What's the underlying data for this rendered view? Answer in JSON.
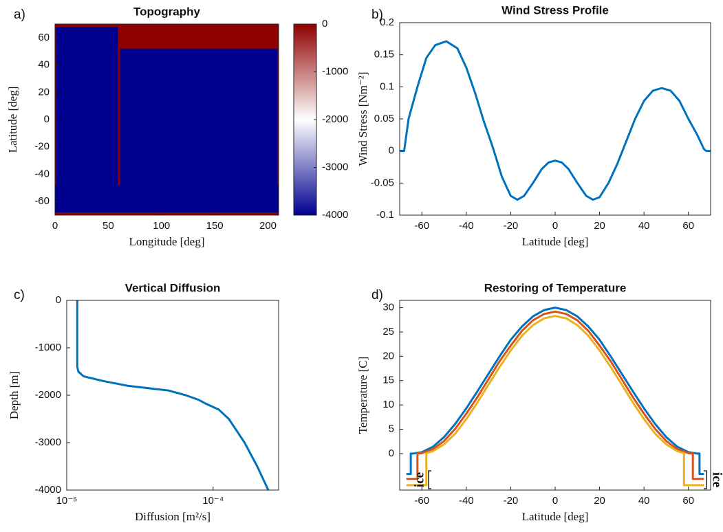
{
  "chart_data": [
    {
      "type": "heatmap",
      "panel_label": "a)",
      "title": "Topography",
      "xlabel": "Longitude [deg]",
      "ylabel": "Latitude [deg]",
      "xlim": [
        0,
        210
      ],
      "ylim": [
        -70,
        70
      ],
      "xticks": [
        0,
        50,
        100,
        150,
        200
      ],
      "yticks": [
        -60,
        -40,
        -20,
        0,
        20,
        40,
        60
      ],
      "clim": [
        -4000,
        0
      ],
      "cticks": [
        0,
        -1000,
        -2000,
        -3000,
        -4000
      ],
      "colormap": [
        "#00008f",
        "#ffffff",
        "#8f0000"
      ],
      "cells": [
        {
          "x": [
            0,
            210
          ],
          "y": [
            -70,
            70
          ],
          "value": 0
        },
        {
          "x": [
            1,
            59
          ],
          "y": [
            -68,
            68
          ],
          "value": -4000
        },
        {
          "x": [
            61,
            209
          ],
          "y": [
            -68,
            52
          ],
          "value": -4000
        },
        {
          "x": [
            0,
            210
          ],
          "y": [
            -68,
            -48
          ],
          "value": -4000
        }
      ]
    },
    {
      "type": "line",
      "panel_label": "b)",
      "title": "Wind Stress Profile",
      "xlabel": "Latitude [deg]",
      "ylabel": "Wind Stress [Nm⁻²]",
      "xlim": [
        -70,
        70
      ],
      "ylim": [
        -0.1,
        0.2
      ],
      "xticks": [
        -60,
        -40,
        -20,
        0,
        20,
        40,
        60
      ],
      "yticks": [
        -0.1,
        -0.05,
        0,
        0.05,
        0.1,
        0.15,
        0.2
      ],
      "series": [
        {
          "color": "#0072bd",
          "x": [
            -70,
            -68,
            -66,
            -62,
            -58,
            -54,
            -49,
            -44,
            -40,
            -36,
            -32,
            -28,
            -24,
            -20,
            -17,
            -14,
            -10,
            -6,
            -3,
            0,
            3,
            6,
            10,
            14,
            17,
            20,
            24,
            28,
            32,
            36,
            40,
            44,
            48,
            52,
            56,
            60,
            64,
            67,
            68,
            70
          ],
          "values": [
            0,
            0,
            0.05,
            0.1,
            0.145,
            0.165,
            0.171,
            0.16,
            0.13,
            0.09,
            0.045,
            0.005,
            -0.04,
            -0.07,
            -0.076,
            -0.07,
            -0.05,
            -0.028,
            -0.018,
            -0.015,
            -0.018,
            -0.028,
            -0.05,
            -0.07,
            -0.076,
            -0.072,
            -0.05,
            -0.02,
            0.015,
            0.05,
            0.078,
            0.094,
            0.098,
            0.094,
            0.078,
            0.05,
            0.025,
            0.003,
            0,
            0
          ]
        }
      ]
    },
    {
      "type": "line",
      "panel_label": "c)",
      "title": "Vertical Diffusion",
      "xlabel": "Diffusion [m²/s]",
      "ylabel": "Depth [m]",
      "xscale": "log",
      "xlim": [
        1e-05,
        0.00028
      ],
      "ylim": [
        -4000,
        0
      ],
      "xticks": [
        {
          "value": 1e-05,
          "label": "10⁻⁵"
        },
        {
          "value": 0.0001,
          "label": "10⁻⁴"
        }
      ],
      "yticks": [
        -4000,
        -3000,
        -2000,
        -1000,
        0
      ],
      "series": [
        {
          "color": "#0072bd",
          "x": [
            1.18e-05,
            1.18e-05,
            1.2e-05,
            1.3e-05,
            1.77e-05,
            2.6e-05,
            4.95e-05,
            6.5e-05,
            8e-05,
            8.8e-05,
            0.000109,
            0.000128,
            0.000164,
            0.0002,
            0.000238
          ],
          "values": [
            0,
            -1400,
            -1500,
            -1600,
            -1700,
            -1800,
            -1900,
            -2000,
            -2100,
            -2170,
            -2300,
            -2500,
            -3000,
            -3500,
            -4000
          ]
        }
      ]
    },
    {
      "type": "line",
      "panel_label": "d)",
      "title": "Restoring of Temperature",
      "xlabel": "Latitude [deg]",
      "ylabel": "Temperature [C]",
      "xlim": [
        -70,
        70
      ],
      "ylim": [
        -7.5,
        31.5
      ],
      "xticks": [
        -60,
        -40,
        -20,
        0,
        20,
        40,
        60
      ],
      "yticks": [
        0,
        5,
        10,
        15,
        20,
        25,
        30
      ],
      "ice_labels": [
        "ice",
        "ice"
      ],
      "series": [
        {
          "color": "#0072bd",
          "x": [
            -67,
            -65,
            -65,
            -64,
            -60,
            -55,
            -50,
            -45,
            -40,
            -35,
            -30,
            -25,
            -20,
            -15,
            -10,
            -5,
            0,
            5,
            10,
            15,
            20,
            25,
            30,
            35,
            40,
            45,
            50,
            55,
            60,
            64,
            65,
            65,
            67
          ],
          "values": [
            -4.2,
            -4.2,
            0,
            0,
            0.3,
            1.4,
            3.4,
            6.1,
            9.3,
            12.8,
            16.4,
            20.0,
            23.4,
            26.1,
            28.2,
            29.5,
            30,
            29.5,
            28.2,
            26.1,
            23.4,
            20.0,
            16.4,
            12.8,
            9.3,
            6.1,
            3.4,
            1.4,
            0.3,
            0,
            0,
            -4.2,
            -4.2
          ]
        },
        {
          "color": "#d95319",
          "x": [
            -67,
            -62,
            -62,
            -60,
            -55,
            -50,
            -45,
            -40,
            -35,
            -30,
            -25,
            -20,
            -15,
            -10,
            -5,
            0,
            5,
            10,
            15,
            20,
            25,
            30,
            35,
            40,
            45,
            50,
            55,
            60,
            62,
            62,
            67
          ],
          "values": [
            -5.2,
            -5.2,
            0,
            0.1,
            0.9,
            2.6,
            5.1,
            8.2,
            11.6,
            15.3,
            19.0,
            22.2,
            25.2,
            27.4,
            28.7,
            29.2,
            28.7,
            27.4,
            25.2,
            22.2,
            19.0,
            15.3,
            11.6,
            8.2,
            5.1,
            2.6,
            0.9,
            0.1,
            0,
            -5.2,
            -5.2
          ]
        },
        {
          "color": "#edb120",
          "x": [
            -67,
            -58,
            -58,
            -55,
            -50,
            -45,
            -40,
            -35,
            -30,
            -25,
            -20,
            -15,
            -10,
            -5,
            0,
            5,
            10,
            15,
            20,
            25,
            30,
            35,
            40,
            45,
            50,
            55,
            58,
            58,
            67
          ],
          "values": [
            -6.5,
            -6.5,
            0.1,
            0.5,
            1.9,
            4.1,
            7.1,
            10.5,
            14.2,
            17.8,
            21.2,
            24.2,
            26.4,
            27.8,
            28.3,
            27.8,
            26.4,
            24.2,
            21.2,
            17.8,
            14.2,
            10.5,
            7.1,
            4.1,
            1.9,
            0.5,
            0.1,
            -6.5,
            -6.5
          ]
        }
      ]
    }
  ]
}
